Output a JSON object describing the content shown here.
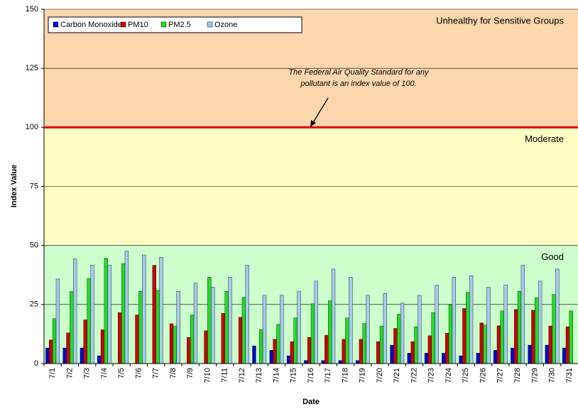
{
  "chart_data": {
    "type": "bar",
    "y_label": "Index Value",
    "x_label": "Date",
    "categories": [
      "7/1",
      "7/2",
      "7/3",
      "7/4",
      "7/5",
      "7/6",
      "7/7",
      "7/8",
      "7/9",
      "7/10",
      "7/11",
      "7/12",
      "7/13",
      "7/14",
      "7/15",
      "7/16",
      "7/17",
      "7/18",
      "7/19",
      "7/20",
      "7/21",
      "7/22",
      "7/23",
      "7/24",
      "7/25",
      "7/26",
      "7/27",
      "7/28",
      "7/29",
      "7/30",
      "7/31"
    ],
    "series": [
      {
        "name": "Carbon Monoxide",
        "color": "#0000cc",
        "values": [
          6.6,
          6.6,
          6.6,
          3.3,
          null,
          null,
          null,
          null,
          null,
          null,
          null,
          null,
          7.5,
          5.6,
          3.3,
          1.3,
          1.3,
          1.3,
          1.3,
          null,
          7.8,
          4.4,
          4.4,
          4.4,
          3.3,
          4.4,
          5.6,
          6.6,
          7.8,
          7.8,
          6.6
        ]
      },
      {
        "name": "PM10",
        "color": "#cc0000",
        "values": [
          10,
          13,
          18.5,
          14.3,
          21.6,
          20.6,
          41.6,
          16.9,
          11.1,
          13.9,
          21.3,
          19.6,
          null,
          10.3,
          9.3,
          11.1,
          12,
          10.3,
          10.3,
          9.3,
          14.9,
          9.3,
          11.8,
          12.9,
          23.3,
          17.2,
          16,
          22.9,
          22.6,
          15.9,
          15.6
        ]
      },
      {
        "name": "PM2.5",
        "color": "#22dd22",
        "values": [
          19,
          30.5,
          36,
          44.6,
          42.3,
          30.6,
          31,
          15.9,
          20.6,
          36.6,
          30.6,
          28,
          14.4,
          16.6,
          19.3,
          25.3,
          26.6,
          19.3,
          16.9,
          15.9,
          20.9,
          15.6,
          21.6,
          24.9,
          30.2,
          16.3,
          22.3,
          30.6,
          27.9,
          29.3,
          22.3
        ]
      },
      {
        "name": "Ozone",
        "color": "#a6caf0",
        "values": [
          35.8,
          44.3,
          41.6,
          41.6,
          47.6,
          46,
          45,
          30.6,
          34,
          32.3,
          36.6,
          41.6,
          28.9,
          28.9,
          30.6,
          34.9,
          40,
          36.6,
          28.9,
          29.6,
          25.6,
          28.9,
          33.2,
          36.6,
          37.2,
          32.3,
          33.2,
          41.6,
          34.9,
          40,
          null
        ]
      }
    ],
    "bands": [
      {
        "label": "Good",
        "from": 0,
        "to": 50,
        "color": "#ccffcc",
        "text_color": "#119911"
      },
      {
        "label": "Moderate",
        "from": 50,
        "to": 100,
        "color": "#ffffc4",
        "text_color": "#f0c000"
      },
      {
        "label": "Unhealthy for Sensitive Groups",
        "from": 100,
        "to": 150,
        "color": "#fcd6ad",
        "text_color": "#ee0000"
      }
    ],
    "threshold": 100,
    "threshold_color": "#dd0000",
    "annotation": [
      "The Federal Air Quality Standard for any",
      "pollutant is an index value of 100."
    ],
    "ylim": [
      0,
      150
    ],
    "yticks": [
      0,
      25,
      50,
      75,
      100,
      125,
      150
    ],
    "grid": true
  }
}
